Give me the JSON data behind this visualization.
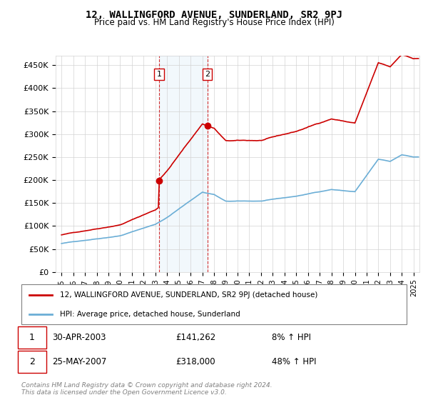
{
  "title": "12, WALLINGFORD AVENUE, SUNDERLAND, SR2 9PJ",
  "subtitle": "Price paid vs. HM Land Registry's House Price Index (HPI)",
  "legend_entry1": "12, WALLINGFORD AVENUE, SUNDERLAND, SR2 9PJ (detached house)",
  "legend_entry2": "HPI: Average price, detached house, Sunderland",
  "transaction1_label": "1",
  "transaction1_date": "30-APR-2003",
  "transaction1_price": "£141,262",
  "transaction1_hpi": "8% ↑ HPI",
  "transaction2_label": "2",
  "transaction2_date": "25-MAY-2007",
  "transaction2_price": "£318,000",
  "transaction2_hpi": "48% ↑ HPI",
  "footer": "Contains HM Land Registry data © Crown copyright and database right 2024.\nThis data is licensed under the Open Government Licence v3.0.",
  "hpi_color": "#6baed6",
  "price_color": "#cc0000",
  "shade_color": "#d6e8f7",
  "transaction1_x": 2003.33,
  "transaction2_x": 2007.42,
  "ylim": [
    0,
    470000
  ],
  "xlim_start": 1995,
  "xlim_end": 2025.5,
  "yticks": [
    0,
    50000,
    100000,
    150000,
    200000,
    250000,
    300000,
    350000,
    400000,
    450000
  ],
  "ytick_labels": [
    "£0",
    "£50K",
    "£100K",
    "£150K",
    "£200K",
    "£250K",
    "£300K",
    "£350K",
    "£400K",
    "£450K"
  ],
  "xtick_years": [
    1995,
    1996,
    1997,
    1998,
    1999,
    2000,
    2001,
    2002,
    2003,
    2004,
    2005,
    2006,
    2007,
    2008,
    2009,
    2010,
    2011,
    2012,
    2013,
    2014,
    2015,
    2016,
    2017,
    2018,
    2019,
    2020,
    2021,
    2022,
    2023,
    2024,
    2025
  ]
}
